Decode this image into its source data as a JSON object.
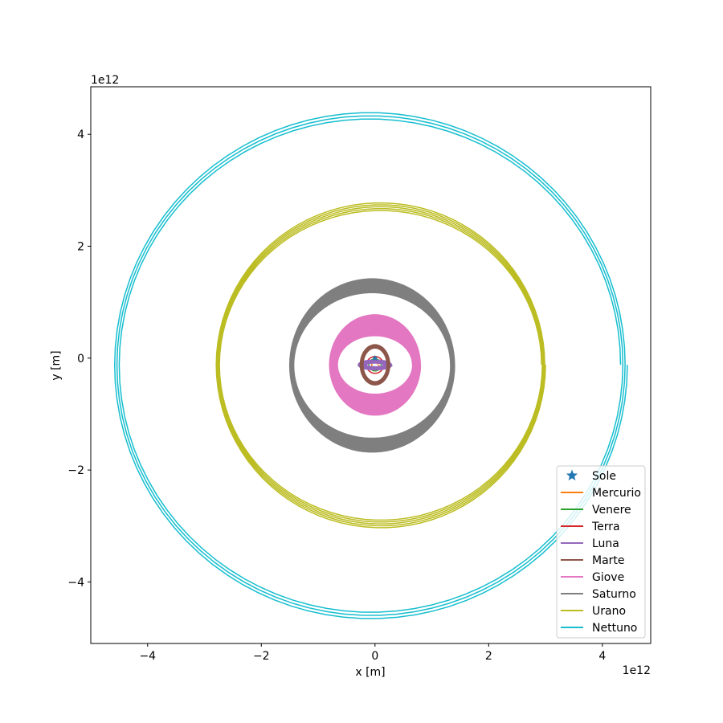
{
  "chart_data": {
    "type": "line",
    "xlabel": "x [m]",
    "ylabel": "y [m]",
    "x_offset_label": "1e12",
    "y_offset_label": "1e12",
    "xlim": [
      -5000000000000.0,
      4850000000000.0
    ],
    "ylim": [
      -5100000000000.0,
      4850000000000.0
    ],
    "x_ticks": [
      -4000000000000.0,
      -2000000000000.0,
      0,
      2000000000000.0,
      4000000000000.0
    ],
    "x_tick_labels": [
      "−4",
      "−2",
      "0",
      "2",
      "4"
    ],
    "y_ticks": [
      -4000000000000.0,
      -2000000000000.0,
      0,
      2000000000000.0,
      4000000000000.0
    ],
    "y_tick_labels": [
      "−4",
      "−2",
      "0",
      "2",
      "4"
    ],
    "grid": false,
    "legend_position": "lower-right",
    "series": [
      {
        "name": "Sole",
        "kind": "marker",
        "color": "#1f77b4",
        "x": 0,
        "y": 0
      },
      {
        "name": "Mercurio",
        "kind": "orbit",
        "color": "#ff7f0e",
        "cx": 0,
        "cy": -120000000000.0,
        "a_min": 46000000000.0,
        "a_max": 70000000000.0,
        "b_min": 46000000000.0,
        "b_max": 70000000000.0,
        "turns": 1
      },
      {
        "name": "Venere",
        "kind": "orbit",
        "color": "#2ca02c",
        "cx": 0,
        "cy": -120000000000.0,
        "a_min": 107000000000.0,
        "a_max": 109000000000.0,
        "b_min": 107000000000.0,
        "b_max": 109000000000.0,
        "turns": 1
      },
      {
        "name": "Terra",
        "kind": "orbit",
        "color": "#d62728",
        "cx": 0,
        "cy": -120000000000.0,
        "a_min": 147000000000.0,
        "a_max": 152000000000.0,
        "b_min": 147000000000.0,
        "b_max": 152000000000.0,
        "turns": 1
      },
      {
        "name": "Luna",
        "kind": "orbit",
        "color": "#9467bd",
        "cx": 0,
        "cy": -120000000000.0,
        "a_min": 150000000000.0,
        "a_max": 300000000000.0,
        "b_min": 30000000000.0,
        "b_max": 90000000000.0,
        "turns": 14
      },
      {
        "name": "Marte",
        "kind": "orbit",
        "color": "#8c564b",
        "cx": 0,
        "cy": -120000000000.0,
        "a_min": 210000000000.0,
        "a_max": 260000000000.0,
        "b_min": 300000000000.0,
        "b_max": 360000000000.0,
        "turns": 40
      },
      {
        "name": "Giove",
        "kind": "orbit",
        "color": "#e377c2",
        "cx": 0.0,
        "cy": -120000000000.0,
        "a_min": 660000000000.0,
        "a_max": 800000000000.0,
        "b_min": 520000000000.0,
        "b_max": 900000000000.0,
        "turns": 50
      },
      {
        "name": "Saturno",
        "kind": "orbit",
        "color": "#7f7f7f",
        "cx": -50000000000.0,
        "cy": -130000000000.0,
        "a_min": 1380000000000.0,
        "a_max": 1450000000000.0,
        "b_min": 1300000000000.0,
        "b_max": 1550000000000.0,
        "turns": 60
      },
      {
        "name": "Urano",
        "kind": "orbit",
        "color": "#bcbd22",
        "cx": 100000000000.0,
        "cy": -120000000000.0,
        "a_min": 2830000000000.0,
        "a_max": 2900000000000.0,
        "b_min": 2750000000000.0,
        "b_max": 2920000000000.0,
        "turns": 5
      },
      {
        "name": "Nettuno",
        "kind": "orbit",
        "color": "#17becf",
        "cx": -80000000000.0,
        "cy": -120000000000.0,
        "a_min": 4400000000000.0,
        "a_max": 4520000000000.0,
        "b_min": 4380000000000.0,
        "b_max": 4550000000000.0,
        "turns": 3
      }
    ]
  }
}
